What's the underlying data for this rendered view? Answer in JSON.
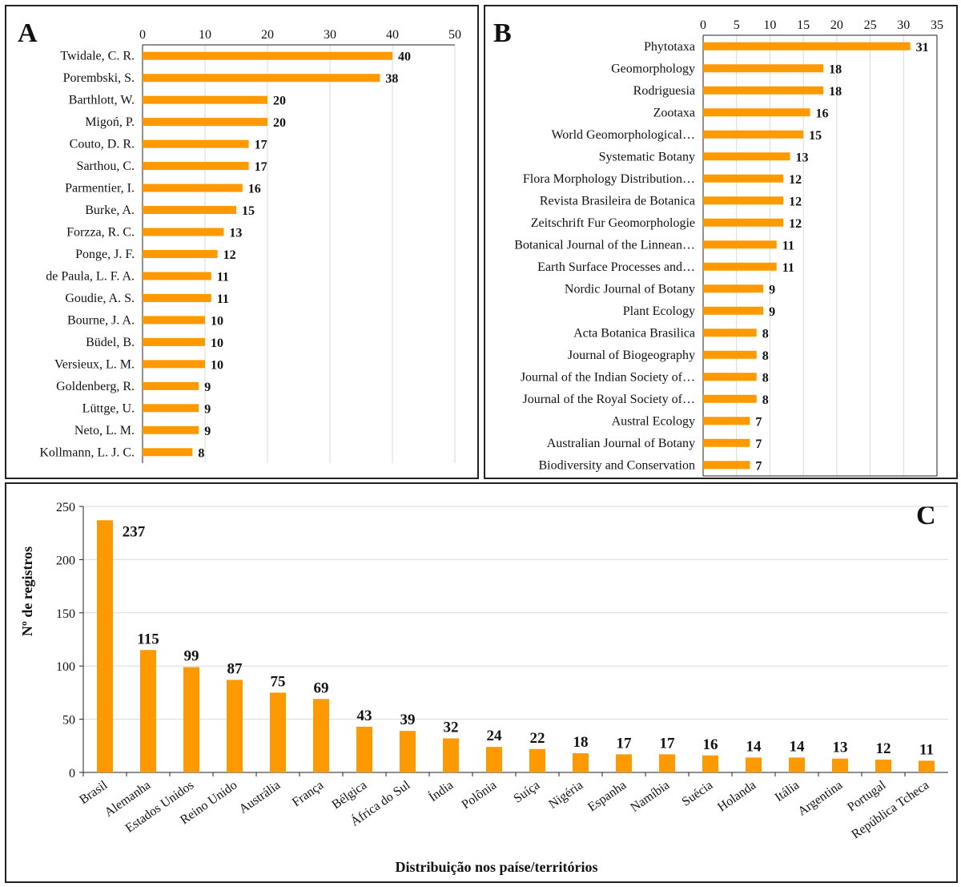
{
  "chart_data": [
    {
      "panel": "A",
      "type": "bar",
      "orientation": "horizontal",
      "categories": [
        "Twidale, C. R.",
        "Porembski, S.",
        "Barthlott, W.",
        "Migoń, P.",
        "Couto, D. R.",
        "Sarthou, C.",
        "Parmentier, I.",
        "Burke, A.",
        "Forzza, R. C.",
        "Ponge, J. F.",
        "de Paula, L. F. A.",
        "Goudie, A. S.",
        "Bourne, J. A.",
        "Büdel, B.",
        "Versieux, L. M.",
        "Goldenberg, R.",
        "Lüttge, U.",
        "Neto, L. M.",
        "Kollmann, L. J. C."
      ],
      "values": [
        40,
        38,
        20,
        20,
        17,
        17,
        16,
        15,
        13,
        12,
        11,
        11,
        10,
        10,
        10,
        9,
        9,
        9,
        8
      ],
      "value_labels": [
        "40",
        "38",
        "20",
        "20",
        "17",
        "17",
        "16",
        "15",
        "13",
        "12",
        "11",
        "11",
        "10",
        "10",
        "10",
        "9",
        "9",
        "9",
        "8"
      ],
      "xlim": [
        0,
        50
      ],
      "xticks": [
        "0",
        "10",
        "20",
        "30",
        "40",
        "50"
      ],
      "axis_position": "top",
      "grid": true,
      "color": "#FF9900"
    },
    {
      "panel": "B",
      "type": "bar",
      "orientation": "horizontal",
      "categories": [
        "Phytotaxa",
        "Geomorphology",
        "Rodriguesia",
        "Zootaxa",
        "World Geomorphological…",
        "Systematic Botany",
        "Flora Morphology Distribution…",
        "Revista Brasileira de Botanica",
        "Zeitschrift Fur Geomorphologie",
        "Botanical Journal of the Linnean…",
        "Earth Surface Processes and…",
        "Nordic Journal of Botany",
        "Plant Ecology",
        "Acta Botanica Brasilica",
        "Journal of Biogeography",
        "Journal of the Indian Society of…",
        "Journal of the Royal Society of…",
        "Austral Ecology",
        "Australian Journal of Botany",
        "Biodiversity and Conservation"
      ],
      "values": [
        31,
        18,
        18,
        16,
        15,
        13,
        12,
        12,
        12,
        11,
        11,
        9,
        9,
        8,
        8,
        8,
        8,
        7,
        7,
        7
      ],
      "value_labels": [
        "31",
        "18",
        "18",
        "16",
        "15",
        "13",
        "12",
        "12",
        "12",
        "11",
        "11",
        "9",
        "9",
        "8",
        "8",
        "8",
        "8",
        "7",
        "7",
        "7"
      ],
      "xlim": [
        0,
        35
      ],
      "xticks": [
        "0",
        "5",
        "10",
        "15",
        "20",
        "25",
        "30",
        "35"
      ],
      "axis_position": "top",
      "grid": true,
      "color": "#FF9900"
    },
    {
      "panel": "C",
      "type": "bar",
      "orientation": "vertical",
      "categories": [
        "Brasil",
        "Alemanha",
        "Estados Unidos",
        "Reino Unido",
        "Austrália",
        "França",
        "Bélgica",
        "África do Sul",
        "Índia",
        "Polônia",
        "Suíça",
        "Nigéria",
        "Espanha",
        "Namíbia",
        "Suécia",
        "Holanda",
        "Itália",
        "Argentina",
        "Portugal",
        "República Tcheca"
      ],
      "values": [
        237,
        115,
        99,
        87,
        75,
        69,
        43,
        39,
        32,
        24,
        22,
        18,
        17,
        17,
        16,
        14,
        14,
        13,
        12,
        11
      ],
      "value_labels": [
        "237",
        "115",
        "99",
        "87",
        "75",
        "69",
        "43",
        "39",
        "32",
        "24",
        "22",
        "18",
        "17",
        "17",
        "16",
        "14",
        "14",
        "13",
        "12",
        "11"
      ],
      "ylim": [
        0,
        250
      ],
      "yticks": [
        "0",
        "50",
        "100",
        "150",
        "200",
        "250"
      ],
      "ylabel": "Nº de registros",
      "xlabel": "Distribuição nos paíse/territórios",
      "grid": true,
      "color": "#FF9900"
    }
  ],
  "panels": {
    "a_letter": "A",
    "b_letter": "B",
    "c_letter": "C"
  }
}
